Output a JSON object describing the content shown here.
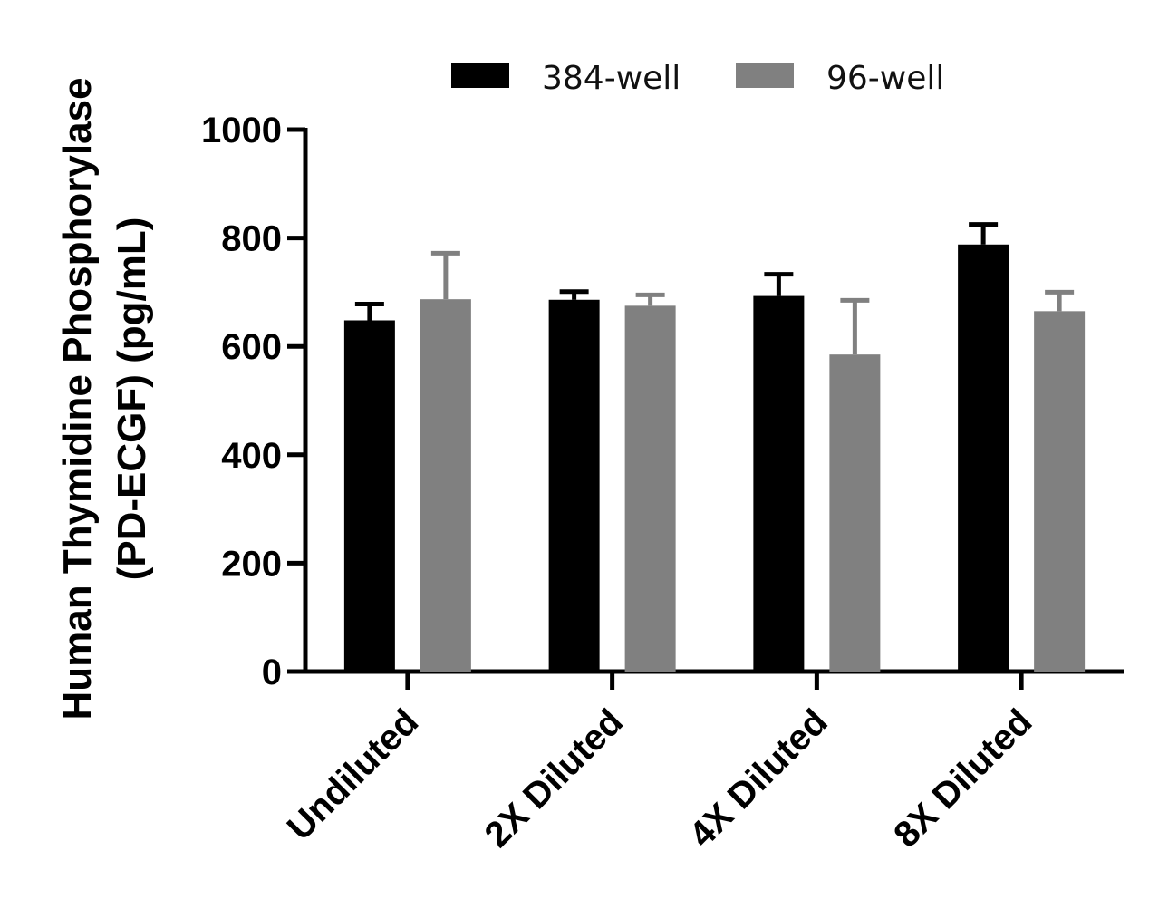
{
  "chart_data": {
    "type": "bar",
    "title": "",
    "xlabel": "",
    "ylabel_lines": [
      "Human Thymidine Phosphorylase",
      "(PD-ECGF) (pg/mL)"
    ],
    "categories": [
      "Undiluted",
      "2X Diluted",
      "4X Diluted",
      "8X Diluted"
    ],
    "series": [
      {
        "name": "384-well",
        "color": "#000000",
        "values": [
          648,
          686,
          693,
          788
        ],
        "errors": [
          30,
          15,
          40,
          37
        ]
      },
      {
        "name": "96-well",
        "color": "#808080",
        "values": [
          687,
          675,
          585,
          665
        ],
        "errors": [
          85,
          20,
          100,
          35
        ]
      }
    ],
    "ylim": [
      0,
      1000
    ],
    "yticks": [
      0,
      200,
      400,
      600,
      800,
      1000
    ],
    "grid": false,
    "legend_position": "top"
  }
}
